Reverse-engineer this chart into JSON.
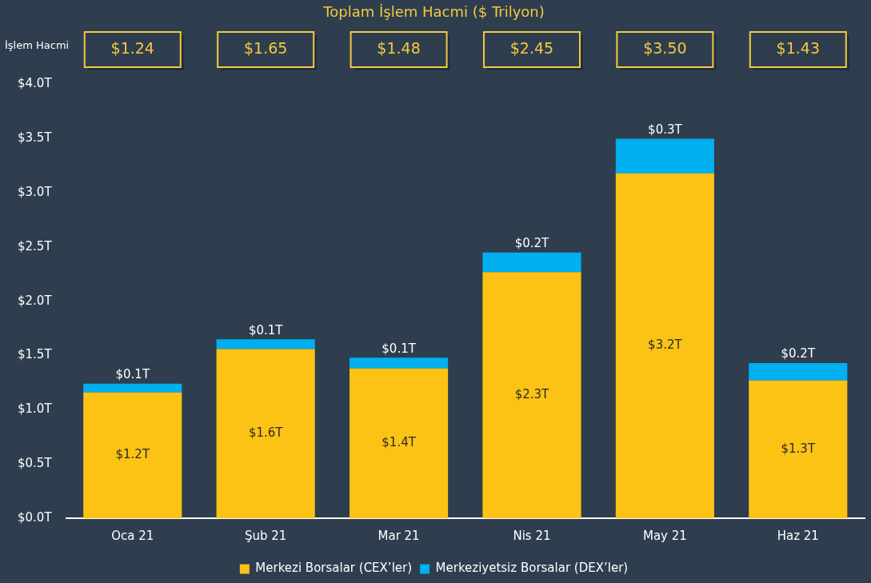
{
  "chart_data": {
    "type": "bar",
    "title": "Toplam İşlem Hacmi ($ Trilyon)",
    "categories": [
      "Oca 21",
      "Şub 21",
      "Mar 21",
      "Nis 21",
      "May 21",
      "Haz 21"
    ],
    "stacked": true,
    "series": [
      {
        "name": "Merkezi Borsalar (CEX’ler)",
        "color": "#fcc314",
        "values": [
          1.16,
          1.56,
          1.38,
          2.27,
          3.18,
          1.27
        ],
        "value_labels": [
          "$1.2T",
          "$1.6T",
          "$1.4T",
          "$2.3T",
          "$3.2T",
          "$1.3T"
        ]
      },
      {
        "name": "Merkeziyetsiz Borsalar (DEX’ler)",
        "color": "#00b0f0",
        "values": [
          0.08,
          0.09,
          0.1,
          0.18,
          0.32,
          0.16
        ],
        "value_labels": [
          "$0.1T",
          "$0.1T",
          "$0.1T",
          "$0.2T",
          "$0.3T",
          "$0.2T"
        ]
      }
    ],
    "annotations": [
      "İşlem Hacmi",
      "$1.24",
      "$1.65",
      "$1.48",
      "$2.45",
      "$3.50",
      "$1.43"
    ],
    "ylim": [
      0,
      4
    ],
    "yticks": [
      {
        "value": 0,
        "label": "$0.0T"
      },
      {
        "value": 0.5,
        "label": "$0.5T"
      },
      {
        "value": 1,
        "label": "$1.0T"
      },
      {
        "value": 1.5,
        "label": "$1.5T"
      },
      {
        "value": 2,
        "label": "$2.0T"
      },
      {
        "value": 2.5,
        "label": "$2.5T"
      },
      {
        "value": 3,
        "label": "$3.0T"
      },
      {
        "value": 3.5,
        "label": "$3.5T"
      },
      {
        "value": 4,
        "label": "$4.0T"
      }
    ],
    "grid": false,
    "legend": "bottom"
  }
}
